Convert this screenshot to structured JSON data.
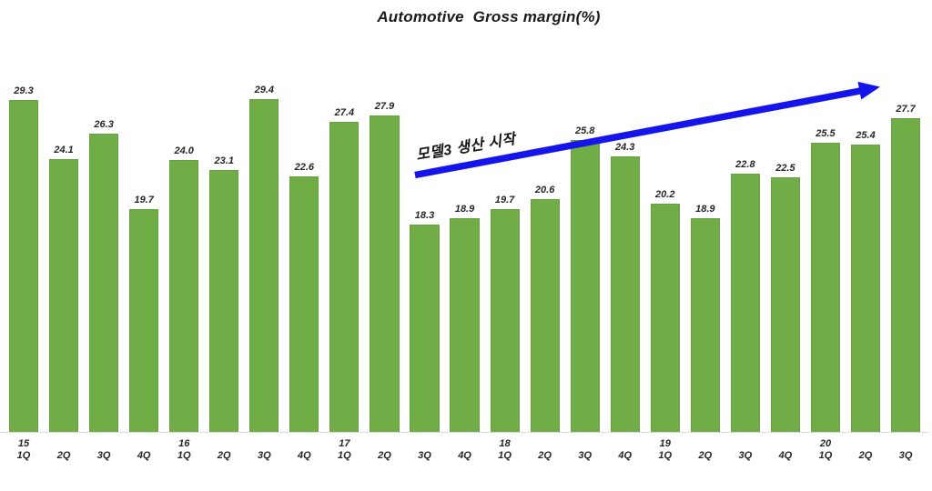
{
  "title": "Automotive  Gross margin(%)",
  "annotation": {
    "text": "모델3 생산 시작"
  },
  "chart_data": {
    "type": "bar",
    "title": "Automotive  Gross margin(%)",
    "categories": [
      "15 1Q",
      "15 2Q",
      "15 3Q",
      "15 4Q",
      "16 1Q",
      "16 2Q",
      "16 3Q",
      "16 4Q",
      "17 1Q",
      "17 2Q",
      "17 3Q",
      "17 4Q",
      "18 1Q",
      "18 2Q",
      "18 3Q",
      "18 4Q",
      "19 1Q",
      "19 2Q",
      "19 3Q",
      "19 4Q",
      "20 1Q",
      "20 2Q",
      "20 3Q"
    ],
    "values": [
      29.3,
      24.1,
      26.3,
      19.7,
      24.0,
      23.1,
      29.4,
      22.6,
      27.4,
      27.9,
      18.3,
      18.9,
      19.7,
      20.6,
      25.8,
      24.3,
      20.2,
      18.9,
      22.8,
      22.5,
      25.5,
      25.4,
      27.7
    ],
    "value_labels": [
      "29.3",
      "24.1",
      "26.3",
      "19.7",
      "24.0",
      "23.1",
      "29.4",
      "22.6",
      "27.4",
      "27.9",
      "18.3",
      "18.9",
      "19.7",
      "20.6",
      "25.8",
      "24.3",
      "20.2",
      "18.9",
      "22.8",
      "22.5",
      "25.5",
      "25.4",
      "27.7"
    ],
    "x_ticks": [
      {
        "year": "15",
        "q": "1Q"
      },
      {
        "year": "",
        "q": "2Q"
      },
      {
        "year": "",
        "q": "3Q"
      },
      {
        "year": "",
        "q": "4Q"
      },
      {
        "year": "16",
        "q": "1Q"
      },
      {
        "year": "",
        "q": "2Q"
      },
      {
        "year": "",
        "q": "3Q"
      },
      {
        "year": "",
        "q": "4Q"
      },
      {
        "year": "17",
        "q": "1Q"
      },
      {
        "year": "",
        "q": "2Q"
      },
      {
        "year": "",
        "q": "3Q"
      },
      {
        "year": "",
        "q": "4Q"
      },
      {
        "year": "18",
        "q": "1Q"
      },
      {
        "year": "",
        "q": "2Q"
      },
      {
        "year": "",
        "q": "3Q"
      },
      {
        "year": "",
        "q": "4Q"
      },
      {
        "year": "19",
        "q": "1Q"
      },
      {
        "year": "",
        "q": "2Q"
      },
      {
        "year": "",
        "q": "3Q"
      },
      {
        "year": "",
        "q": "4Q"
      },
      {
        "year": "20",
        "q": "1Q"
      },
      {
        "year": "",
        "q": "2Q"
      },
      {
        "year": "",
        "q": "3Q"
      }
    ],
    "ylim": [
      0,
      33.3
    ],
    "grid": false,
    "legend": false,
    "xlabel": "",
    "ylabel": "",
    "bar_color": "#70AD47",
    "bar_border_color": "#66A040",
    "label_color": "#262626",
    "axis_line_color": "#DCDCDC",
    "arrow_color": "#1414EB",
    "annotation_text": "모델3 생산 시작"
  }
}
